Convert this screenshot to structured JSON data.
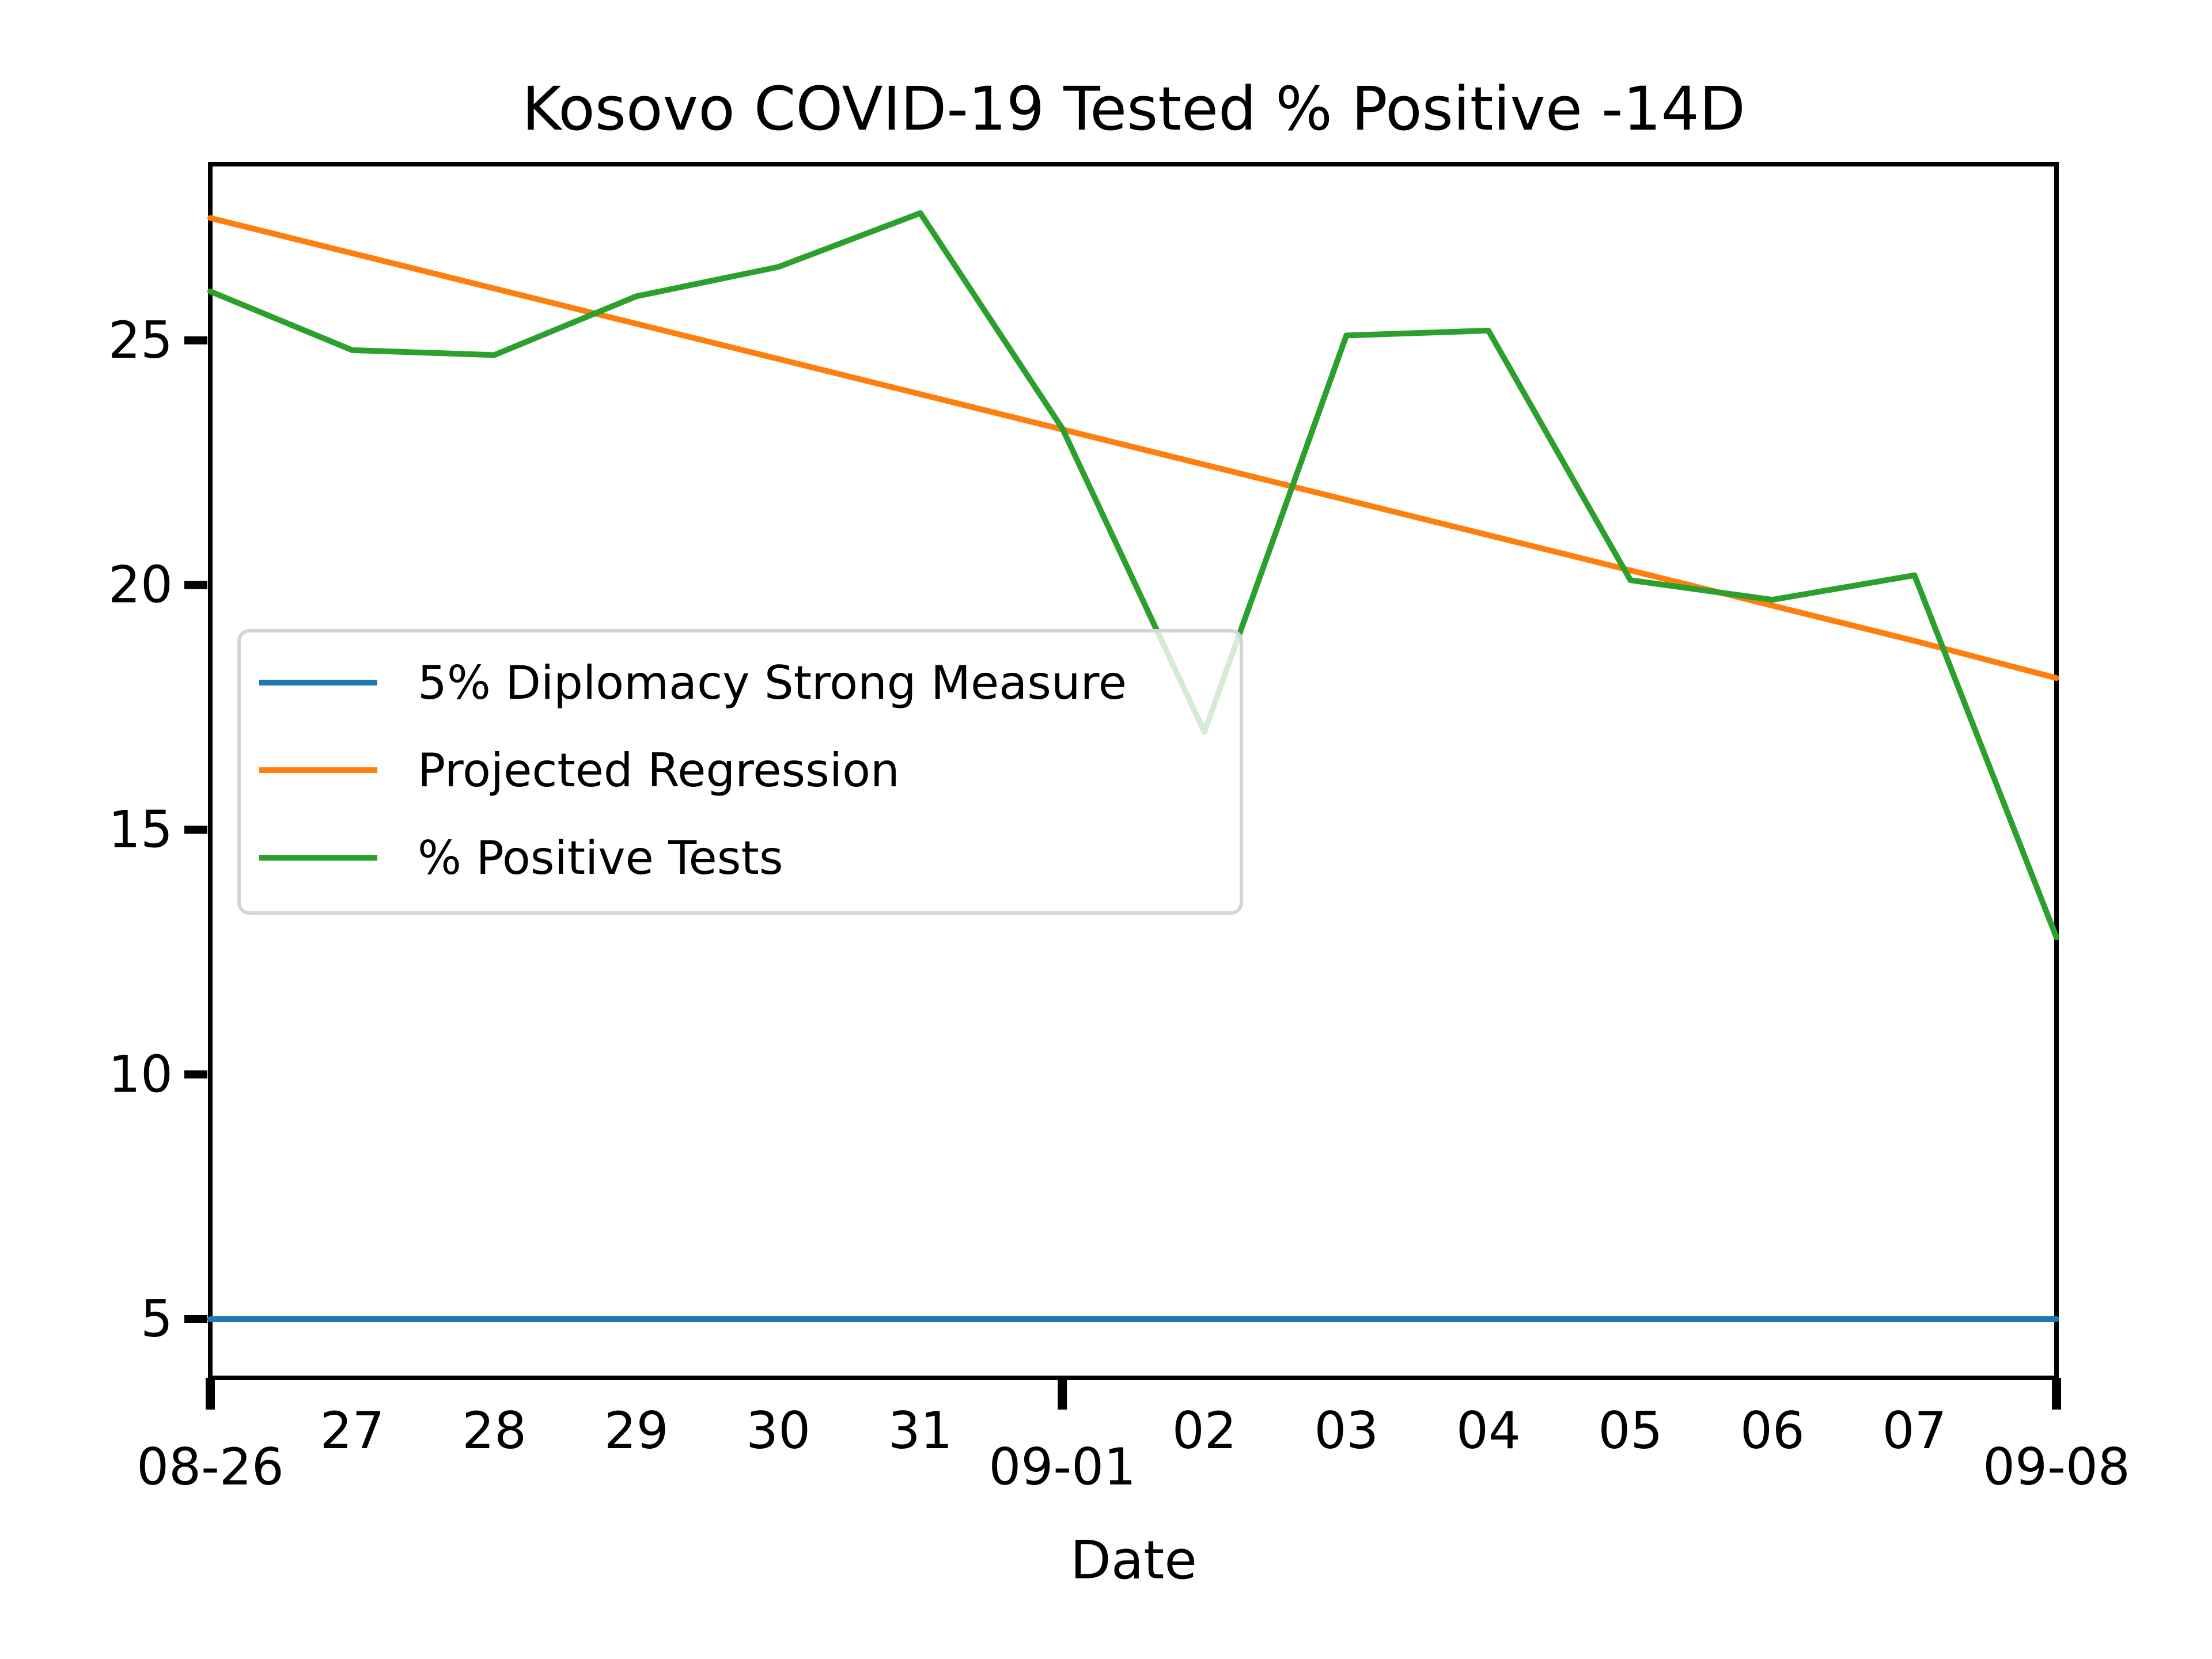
{
  "chart_data": {
    "type": "line",
    "title": "Kosovo COVID-19 Tested % Positive -14D",
    "xlabel": "Date",
    "ylabel": "",
    "x": [
      "08-26",
      "08-27",
      "08-28",
      "08-29",
      "08-30",
      "08-31",
      "09-01",
      "09-02",
      "09-03",
      "09-04",
      "09-05",
      "09-06",
      "09-07",
      "09-08"
    ],
    "x_tick_labels": [
      "08-26",
      "27",
      "28",
      "29",
      "30",
      "31",
      "09-01",
      "02",
      "03",
      "04",
      "05",
      "06",
      "07",
      "09-08"
    ],
    "y_ticks": [
      5,
      10,
      15,
      20,
      25
    ],
    "ylim": [
      3.8,
      28.6
    ],
    "grid": false,
    "legend_position": "center-left",
    "series": [
      {
        "name": "5% Diplomacy Strong Measure",
        "color": "#1f77b4",
        "values": [
          5,
          5,
          5,
          5,
          5,
          5,
          5,
          5,
          5,
          5,
          5,
          5,
          5,
          5
        ]
      },
      {
        "name": "Projected Regression",
        "color": "#ff7f0e",
        "values": [
          27.5,
          26.78,
          26.06,
          25.34,
          24.62,
          23.9,
          23.18,
          22.46,
          21.74,
          21.02,
          20.3,
          19.58,
          18.86,
          18.1
        ]
      },
      {
        "name": "% Positive Tests",
        "color": "#2ca02c",
        "values": [
          26.0,
          24.8,
          24.7,
          25.9,
          26.5,
          27.6,
          23.2,
          17.0,
          25.1,
          25.2,
          20.1,
          19.7,
          20.2,
          12.8
        ]
      }
    ]
  }
}
